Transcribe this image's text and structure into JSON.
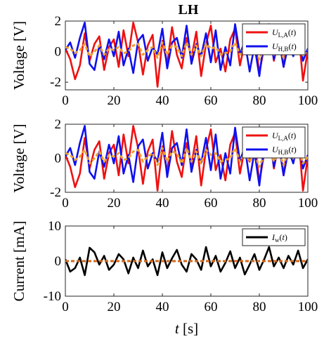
{
  "title": "LH",
  "chart_data": [
    {
      "type": "line",
      "ylabel": "Voltage [V]",
      "xlim": [
        0,
        100
      ],
      "ylim": [
        -2.5,
        2
      ],
      "xticks": [
        0,
        20,
        40,
        60,
        80,
        100
      ],
      "yticks": [
        -2,
        0,
        2
      ],
      "legend_position": "top-right",
      "x": [
        0,
        2,
        4,
        6,
        8,
        10,
        12,
        14,
        16,
        18,
        20,
        22,
        24,
        26,
        28,
        30,
        32,
        34,
        36,
        38,
        40,
        42,
        44,
        46,
        48,
        50,
        52,
        54,
        56,
        58,
        60,
        62,
        64,
        66,
        68,
        70,
        72,
        74,
        76,
        78,
        80,
        82,
        84,
        86,
        88,
        90,
        92,
        94,
        96,
        98,
        100
      ],
      "series": [
        {
          "name": "U_L,A(t)",
          "name_main": "U",
          "name_sub": "L,A",
          "color": "#ee1111",
          "values": [
            0.2,
            -0.5,
            -1.8,
            -0.9,
            1.2,
            -0.6,
            0.5,
            1.0,
            -1.2,
            0.3,
            0.8,
            -1.0,
            1.4,
            -0.3,
            1.9,
            0.6,
            -1.5,
            0.4,
            1.1,
            -2.3,
            0.7,
            -0.8,
            1.6,
            -0.2,
            -1.1,
            0.9,
            -0.4,
            1.3,
            -1.6,
            0.5,
            1.7,
            -0.7,
            0.2,
            -1.3,
            0.8,
            1.5,
            -0.9,
            0.6,
            -0.2,
            1.1,
            -1.4,
            0.3,
            1.8,
            -0.6,
            0.9,
            -1.0,
            1.2,
            0.4,
            1.6,
            -1.9,
            0.1
          ]
        },
        {
          "name": "U_H,B(t)",
          "name_main": "U",
          "name_sub": "H,B",
          "color": "#1010ee",
          "values": [
            0.1,
            0.6,
            -0.4,
            0.9,
            1.9,
            -0.8,
            -1.2,
            0.4,
            -0.5,
            0.8,
            -0.3,
            1.3,
            -0.9,
            0.2,
            -1.4,
            0.7,
            1.1,
            -0.6,
            0.3,
            -0.2,
            1.5,
            -1.1,
            0.6,
            0.9,
            -0.4,
            1.7,
            -0.8,
            0.5,
            -0.3,
            1.2,
            -0.7,
            1.4,
            -1.2,
            0.3,
            -0.9,
            1.8,
            -0.2,
            0.7,
            -1.3,
            0.4,
            -1.6,
            0.8,
            1.3,
            -0.5,
            0.9,
            -1.0,
            0.5,
            -0.3,
            1.1,
            -0.6,
            0.2
          ]
        },
        {
          "name": "",
          "dashed": true,
          "color": "#f0a030",
          "values": [
            0.3,
            0.2,
            -0.1,
            0.1,
            0.5,
            -0.3,
            0.0,
            0.4,
            -0.2,
            0.2,
            0.1,
            0.3,
            -0.1,
            0.0,
            0.4,
            0.5,
            -0.2,
            0.1,
            0.3,
            -0.4,
            0.6,
            -0.2,
            0.4,
            0.3,
            -0.3,
            0.6,
            -0.2,
            0.4,
            -0.3,
            0.5,
            0.2,
            0.3,
            -0.2,
            -0.1,
            0.0,
            0.6,
            -0.2,
            0.3,
            -0.2,
            0.3,
            -0.5,
            0.2,
            0.6,
            -0.2,
            0.4,
            -0.4,
            0.4,
            0.0,
            0.6,
            -0.3,
            0.1
          ]
        }
      ]
    },
    {
      "type": "line",
      "ylabel": "Voltage [V]",
      "xlim": [
        0,
        100
      ],
      "ylim": [
        -2,
        2
      ],
      "xticks": [
        0,
        20,
        40,
        60,
        80,
        100
      ],
      "yticks": [
        -2,
        0,
        2
      ],
      "legend_position": "top-right",
      "x": [
        0,
        2,
        4,
        6,
        8,
        10,
        12,
        14,
        16,
        18,
        20,
        22,
        24,
        26,
        28,
        30,
        32,
        34,
        36,
        38,
        40,
        42,
        44,
        46,
        48,
        50,
        52,
        54,
        56,
        58,
        60,
        62,
        64,
        66,
        68,
        70,
        72,
        74,
        76,
        78,
        80,
        82,
        84,
        86,
        88,
        90,
        92,
        94,
        96,
        98,
        100
      ],
      "series": [
        {
          "name": "U_L,A(t)",
          "name_main": "U",
          "name_sub": "L,A",
          "color": "#ee1111",
          "values": [
            0.2,
            -0.5,
            -1.7,
            -0.9,
            1.2,
            -0.6,
            0.5,
            1.0,
            -1.2,
            0.3,
            0.8,
            -1.0,
            1.4,
            -0.3,
            1.9,
            0.6,
            -1.5,
            0.4,
            1.1,
            -1.9,
            0.7,
            -0.8,
            1.6,
            -0.2,
            -1.1,
            0.9,
            -0.4,
            1.3,
            -1.6,
            0.5,
            1.7,
            -0.7,
            0.2,
            -1.3,
            0.8,
            1.5,
            -0.9,
            0.6,
            -0.2,
            1.1,
            -1.4,
            0.3,
            1.8,
            -0.6,
            0.9,
            -1.0,
            1.2,
            0.4,
            1.6,
            -1.9,
            0.1
          ]
        },
        {
          "name": "U_H,B(t)",
          "name_main": "U",
          "name_sub": "H,B",
          "color": "#1010ee",
          "values": [
            0.1,
            0.6,
            -0.4,
            0.9,
            1.9,
            -0.8,
            -1.2,
            0.4,
            -0.5,
            0.8,
            -0.3,
            1.3,
            -0.9,
            0.2,
            -1.4,
            0.7,
            1.1,
            -0.6,
            0.3,
            -0.2,
            1.5,
            -1.1,
            0.6,
            0.9,
            -0.4,
            1.7,
            -0.8,
            0.5,
            -0.3,
            1.2,
            -0.7,
            1.4,
            -1.2,
            0.3,
            -0.9,
            1.8,
            -0.2,
            0.7,
            -1.3,
            0.4,
            -1.6,
            0.8,
            1.3,
            -0.5,
            0.9,
            -1.0,
            0.5,
            -0.3,
            1.1,
            -0.6,
            0.2
          ]
        },
        {
          "name": "",
          "dashed": true,
          "color": "#f0a030",
          "values": [
            0.3,
            0.2,
            -0.1,
            0.1,
            0.5,
            -0.3,
            0.0,
            0.4,
            -0.2,
            0.2,
            0.1,
            0.3,
            -0.1,
            0.0,
            0.4,
            0.5,
            -0.2,
            0.1,
            0.3,
            -0.4,
            0.6,
            -0.2,
            0.4,
            0.3,
            -0.3,
            0.6,
            -0.2,
            0.4,
            -0.3,
            0.5,
            0.2,
            0.3,
            -0.2,
            -0.1,
            0.0,
            0.6,
            -0.2,
            0.3,
            -0.2,
            0.3,
            -0.5,
            0.2,
            0.6,
            -0.2,
            0.4,
            -0.4,
            0.4,
            0.0,
            0.6,
            -0.3,
            0.1
          ]
        }
      ]
    },
    {
      "type": "line",
      "ylabel": "Current [mA]",
      "xlabel_main": "t",
      "xlabel_unit": "[s]",
      "xlim": [
        0,
        100
      ],
      "ylim": [
        -10,
        10
      ],
      "xticks": [
        0,
        20,
        40,
        60,
        80,
        100
      ],
      "yticks": [
        -10,
        0,
        10
      ],
      "legend_position": "top-right",
      "x": [
        0,
        2,
        4,
        6,
        8,
        10,
        12,
        14,
        16,
        18,
        20,
        22,
        24,
        26,
        28,
        30,
        32,
        34,
        36,
        38,
        40,
        42,
        44,
        46,
        48,
        50,
        52,
        54,
        56,
        58,
        60,
        62,
        64,
        66,
        68,
        70,
        72,
        74,
        76,
        78,
        80,
        82,
        84,
        86,
        88,
        90,
        92,
        94,
        96,
        98,
        100
      ],
      "series": [
        {
          "name": "I_w(t)",
          "name_main": "I",
          "name_sub": "w",
          "color": "#000000",
          "values": [
            0.5,
            -3.0,
            -2.0,
            1.0,
            -4.0,
            3.8,
            2.5,
            -1.0,
            1.5,
            -2.5,
            -1.0,
            2.0,
            0.5,
            -3.5,
            1.0,
            -2.0,
            3.0,
            -1.5,
            0.5,
            -4.0,
            2.5,
            -2.0,
            0.8,
            3.2,
            -1.0,
            -3.0,
            2.0,
            0.5,
            -2.5,
            4.0,
            -1.5,
            1.5,
            -3.0,
            -0.5,
            2.8,
            -2.0,
            1.0,
            -3.8,
            -1.0,
            2.0,
            -2.5,
            0.5,
            4.0,
            -1.5,
            1.0,
            -2.0,
            1.5,
            -1.0,
            3.0,
            -2.0,
            0.5
          ]
        },
        {
          "name": "",
          "dashed": true,
          "color": "#d2691e",
          "values": [
            0,
            0,
            0,
            0,
            0,
            0,
            0,
            0,
            0,
            0,
            0,
            0,
            0,
            0,
            0,
            0,
            0,
            0,
            0,
            0,
            0,
            0,
            0,
            0,
            0,
            0,
            0,
            0,
            0,
            0,
            0,
            0,
            0,
            0,
            0,
            0,
            0,
            0,
            0,
            0,
            0,
            0,
            0,
            0,
            0,
            0,
            0,
            0,
            0,
            0,
            0
          ]
        }
      ]
    }
  ]
}
